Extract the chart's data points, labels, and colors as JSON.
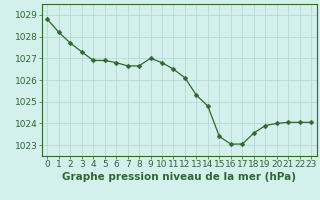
{
  "x": [
    0,
    1,
    2,
    3,
    4,
    5,
    6,
    7,
    8,
    9,
    10,
    11,
    12,
    13,
    14,
    15,
    16,
    17,
    18,
    19,
    20,
    21,
    22,
    23
  ],
  "y": [
    1028.8,
    1028.2,
    1027.7,
    1027.3,
    1026.9,
    1026.9,
    1026.8,
    1026.65,
    1026.65,
    1027.0,
    1026.8,
    1026.5,
    1026.1,
    1025.3,
    1024.8,
    1023.4,
    1023.05,
    1023.05,
    1023.55,
    1023.9,
    1024.0,
    1024.05,
    1024.05,
    1024.05
  ],
  "line_color": "#2d6a2d",
  "marker": "D",
  "marker_size": 2.5,
  "bg_color": "#d4f0ed",
  "grid_color": "#b8d8d8",
  "xlabel": "Graphe pression niveau de la mer (hPa)",
  "xlabel_color": "#2d6a2d",
  "tick_color": "#2d6a2d",
  "ylim": [
    1022.5,
    1029.5
  ],
  "yticks": [
    1023,
    1024,
    1025,
    1026,
    1027,
    1028,
    1029
  ],
  "xticks": [
    0,
    1,
    2,
    3,
    4,
    5,
    6,
    7,
    8,
    9,
    10,
    11,
    12,
    13,
    14,
    15,
    16,
    17,
    18,
    19,
    20,
    21,
    22,
    23
  ],
  "tick_fontsize": 6.5,
  "xlabel_fontsize": 7.5
}
